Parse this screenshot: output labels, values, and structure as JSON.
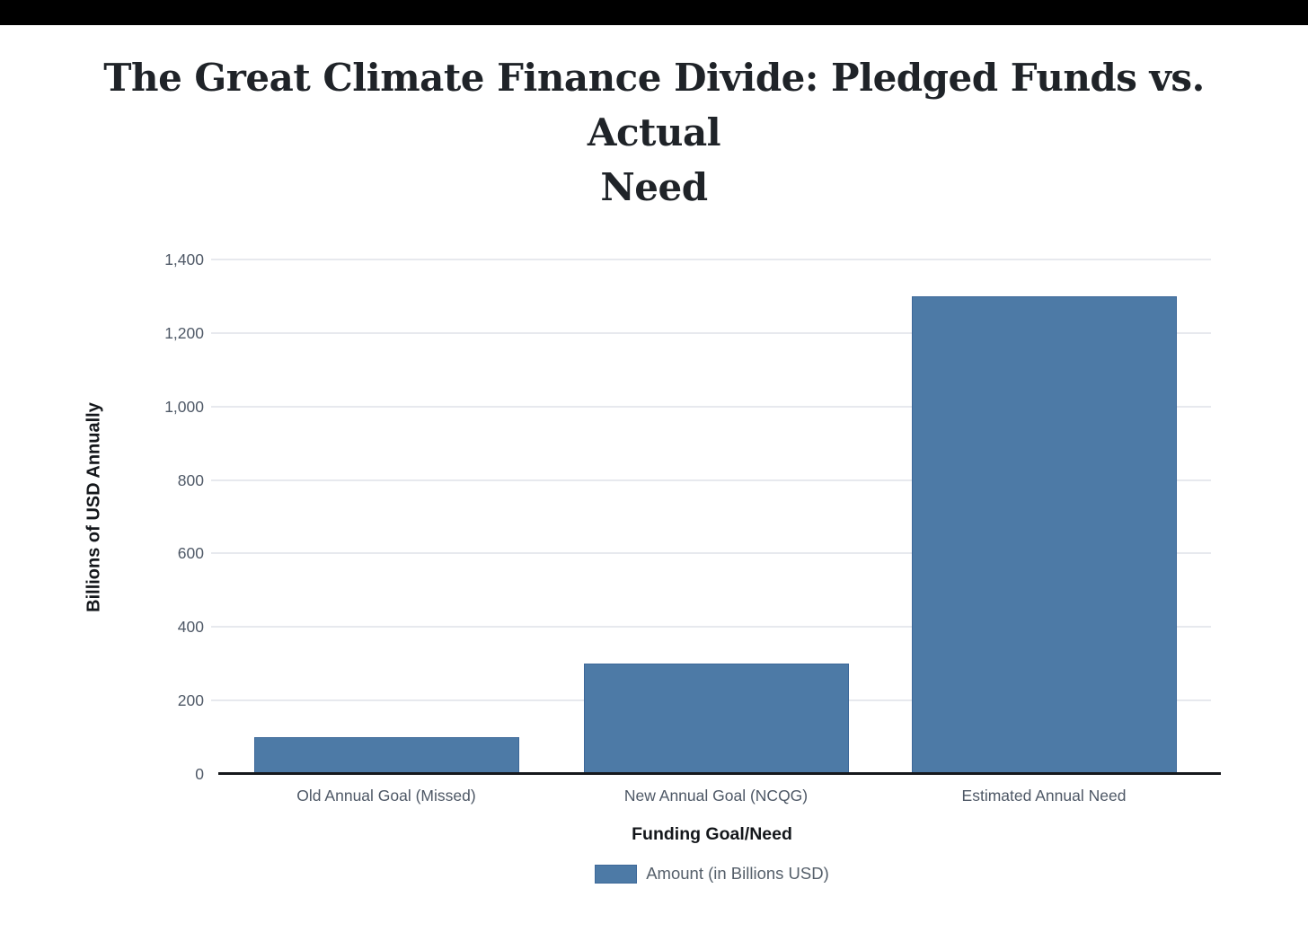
{
  "header": {
    "title_line1": "The Great Climate Finance Divide: Pledged Funds vs. Actual",
    "title_line2": "Need"
  },
  "chart_data": {
    "type": "bar",
    "title": "The Great Climate Finance Divide: Pledged Funds vs. Actual Need",
    "categories": [
      "Old Annual Goal (Missed)",
      "New Annual Goal (NCQG)",
      "Estimated Annual Need"
    ],
    "values": [
      100,
      300,
      1300
    ],
    "series": [
      {
        "name": "Amount (in Billions USD)",
        "values": [
          100,
          300,
          1300
        ]
      }
    ],
    "xlabel": "Funding Goal/Need",
    "ylabel": "Billions of USD Annually",
    "ylim": [
      0,
      1400
    ],
    "yticks": [
      {
        "value": 0,
        "label": "0"
      },
      {
        "value": 200,
        "label": "200"
      },
      {
        "value": 400,
        "label": "400"
      },
      {
        "value": 600,
        "label": "600"
      },
      {
        "value": 800,
        "label": "800"
      },
      {
        "value": 1000,
        "label": "1,000"
      },
      {
        "value": 1200,
        "label": "1,200"
      },
      {
        "value": 1400,
        "label": "1,400"
      }
    ],
    "grid": true,
    "legend_position": "bottom",
    "bar_color": "#4d7aa6",
    "bar_border_color": "#3d6899",
    "gridline_color": "#e7e9ee",
    "axis_line_color": "#16181c",
    "tick_text_color": "#4e5866"
  },
  "legend": {
    "label": "Amount (in Billions USD)"
  }
}
